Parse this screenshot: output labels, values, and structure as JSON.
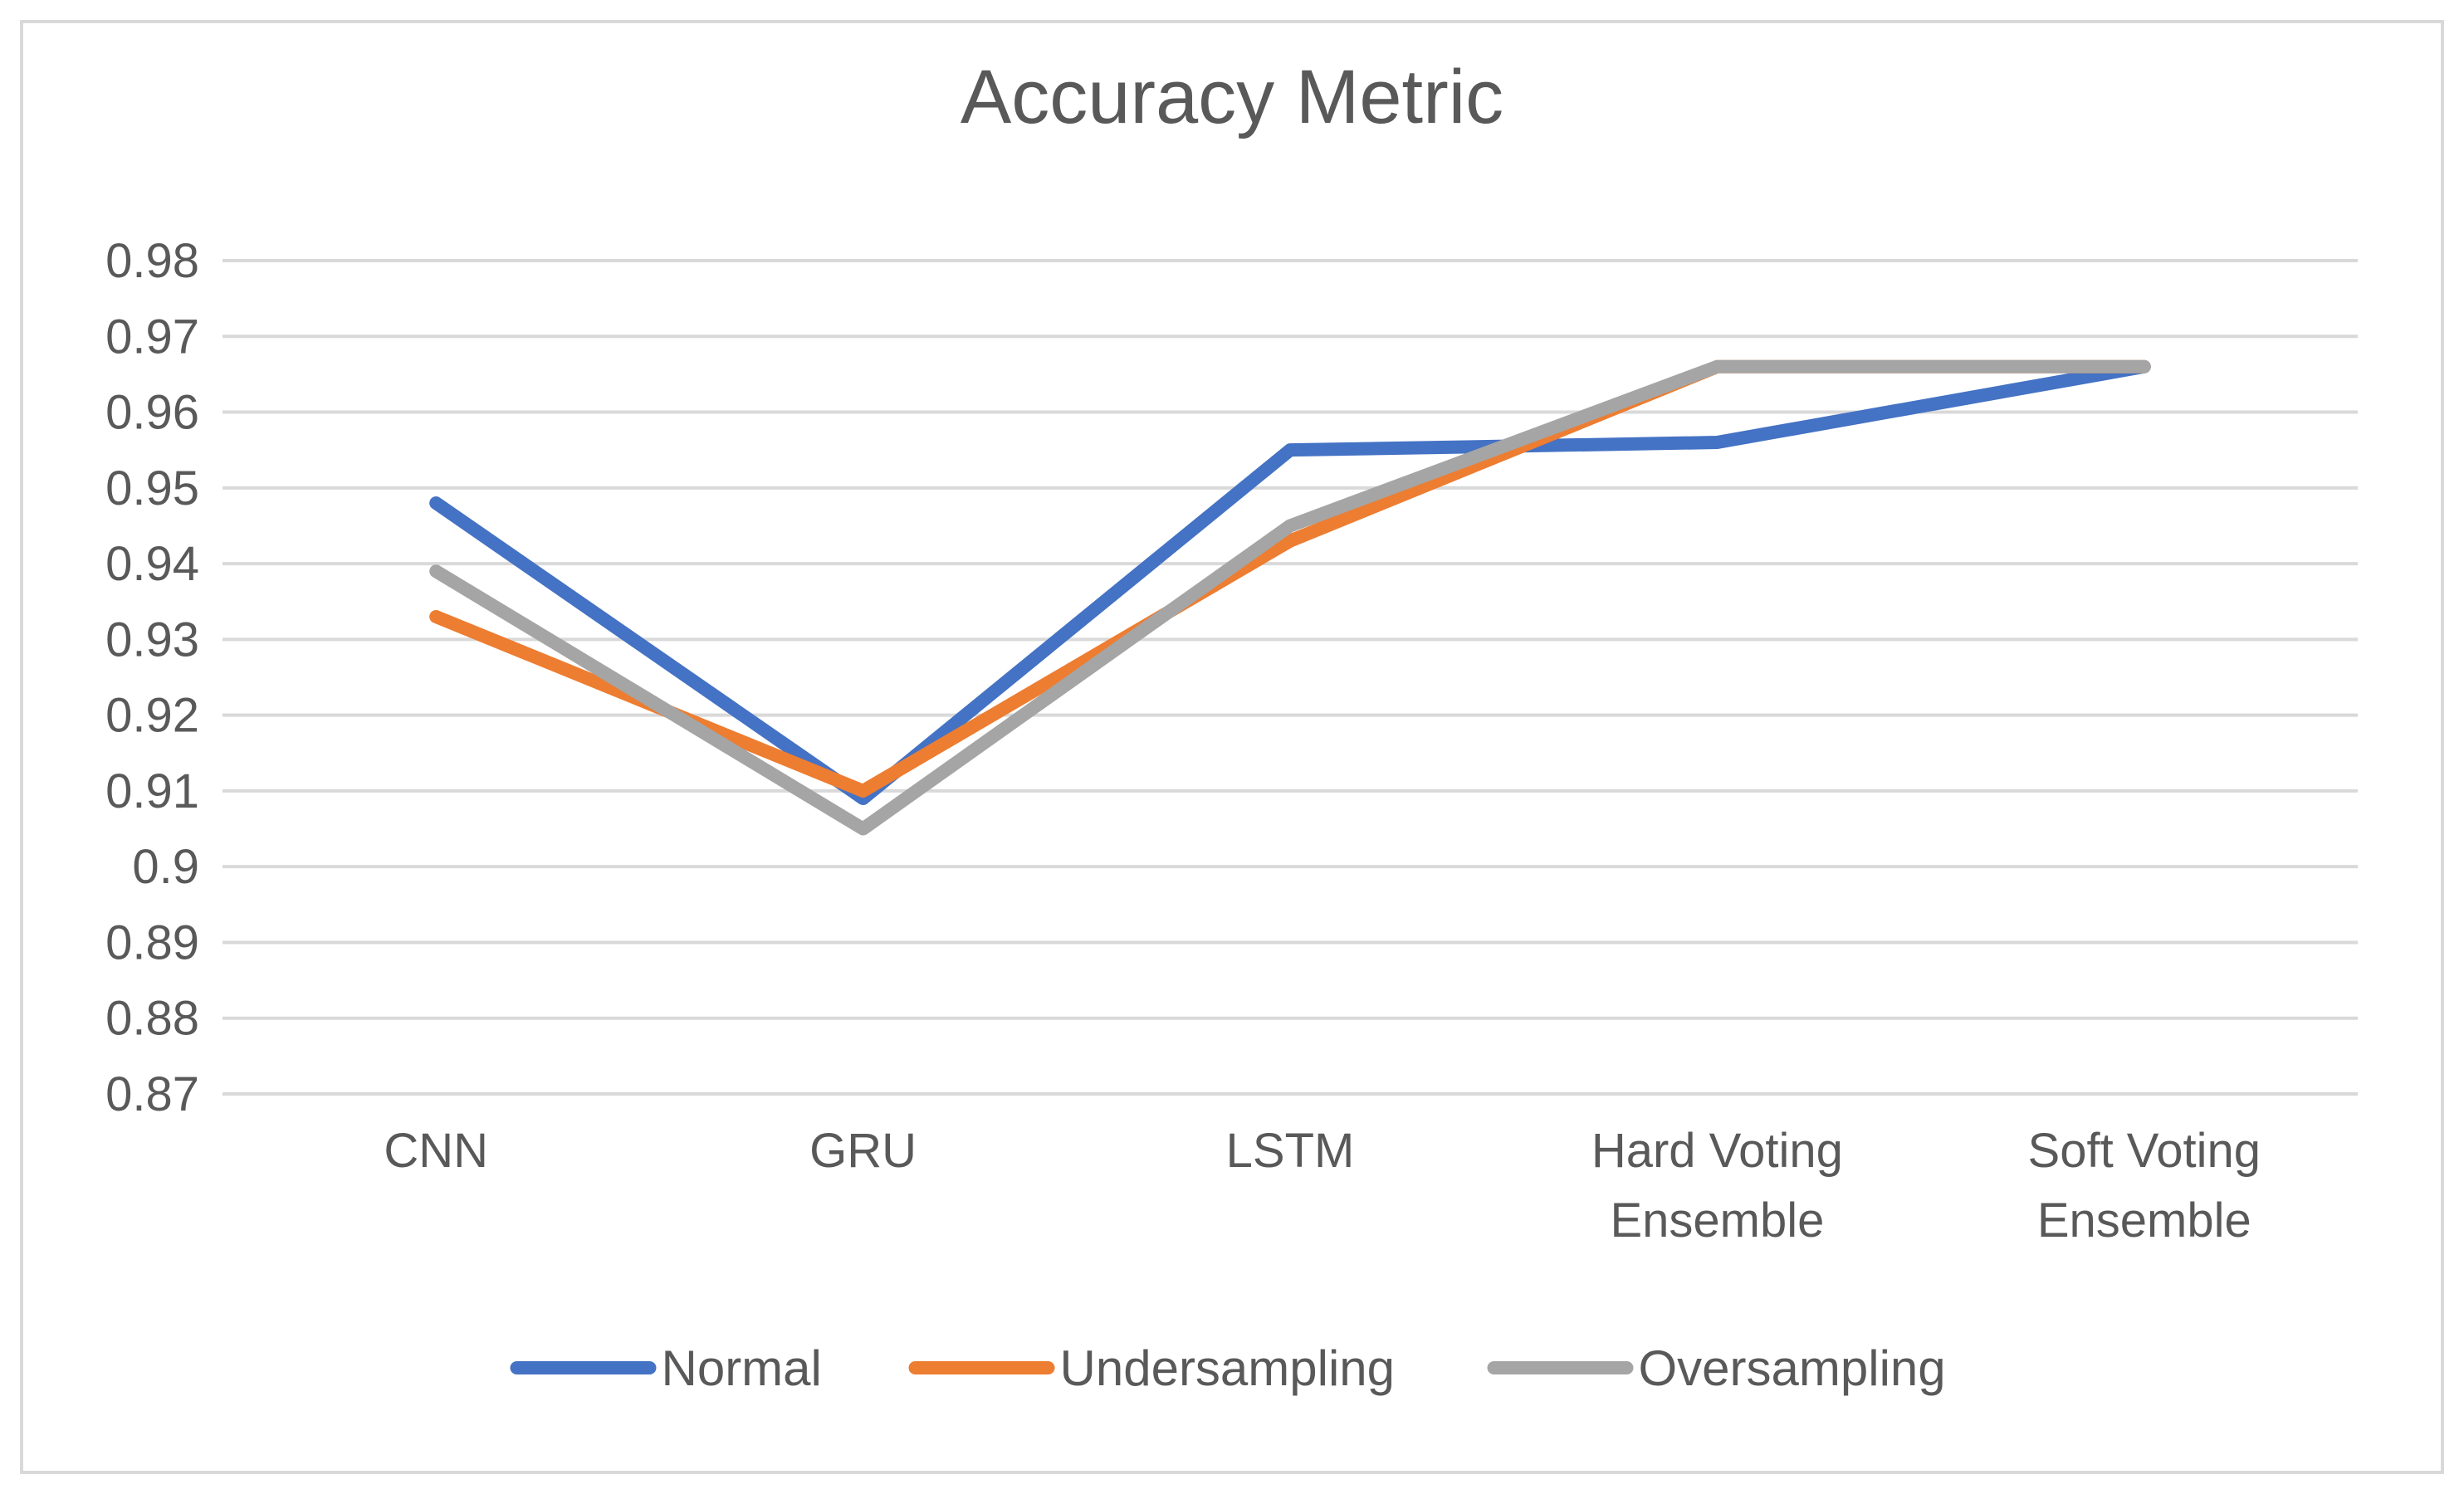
{
  "chart_data": {
    "type": "line",
    "title": "Accuracy Metric",
    "xlabel": "",
    "ylabel": "",
    "categories": [
      [
        "CNN"
      ],
      [
        "GRU"
      ],
      [
        "LSTM"
      ],
      [
        "Hard Voting",
        "Ensemble"
      ],
      [
        "Soft Voting",
        "Ensemble"
      ]
    ],
    "ylim": [
      0.87,
      0.98
    ],
    "yticks": [
      0.87,
      0.88,
      0.89,
      0.9,
      0.91,
      0.92,
      0.93,
      0.94,
      0.95,
      0.96,
      0.97,
      0.98
    ],
    "ytick_labels": [
      "0.87",
      "0.88",
      "0.89",
      "0.9",
      "0.91",
      "0.92",
      "0.93",
      "0.94",
      "0.95",
      "0.96",
      "0.97",
      "0.98"
    ],
    "grid": true,
    "legend_position": "bottom",
    "series": [
      {
        "name": "Normal",
        "color": "#4472c4",
        "values": [
          0.948,
          0.909,
          0.955,
          0.956,
          0.966
        ]
      },
      {
        "name": "Undersampling",
        "color": "#ed7d31",
        "values": [
          0.933,
          0.91,
          0.943,
          0.966,
          0.966
        ]
      },
      {
        "name": "Oversampling",
        "color": "#a5a5a5",
        "values": [
          0.939,
          0.905,
          0.945,
          0.966,
          0.966
        ]
      }
    ]
  }
}
